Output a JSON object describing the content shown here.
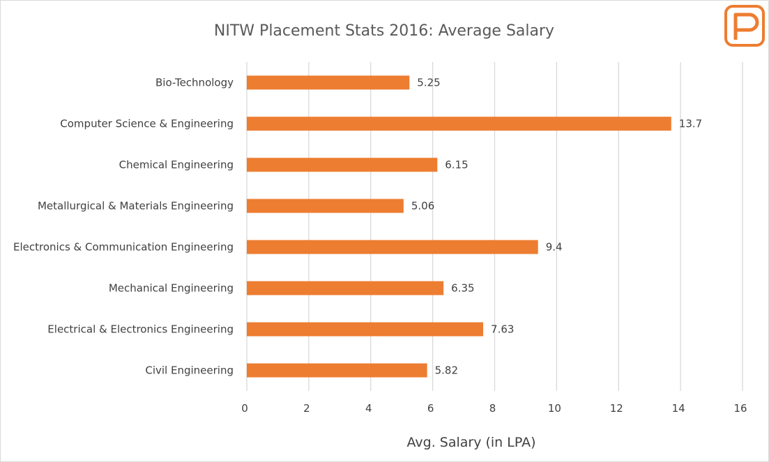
{
  "colors": {
    "bar": "#ed7d31",
    "logo": "#ed7d31",
    "grid": "#d9d9d9",
    "text": "#404040",
    "title": "#595959"
  },
  "logo": {
    "icon": "p-logo-icon",
    "letter": "P"
  },
  "chart_data": {
    "type": "bar",
    "orientation": "horizontal",
    "title": "NITW Placement Stats 2016: Average Salary",
    "xlabel": "Avg. Salary (in LPA)",
    "ylabel": "",
    "xlim": [
      0,
      16
    ],
    "xticks": [
      0,
      2,
      4,
      6,
      8,
      10,
      12,
      14,
      16
    ],
    "grid": true,
    "legend": "none",
    "categories": [
      "Bio-Technology",
      "Computer Science & Engineering",
      "Chemical Engineering",
      "Metallurgical & Materials Engineering",
      "Electronics & Communication Engineering",
      "Mechanical Engineering",
      "Electrical & Electronics Engineering",
      "Civil Engineering"
    ],
    "values": [
      5.25,
      13.7,
      6.15,
      5.06,
      9.4,
      6.35,
      7.63,
      5.82
    ]
  }
}
